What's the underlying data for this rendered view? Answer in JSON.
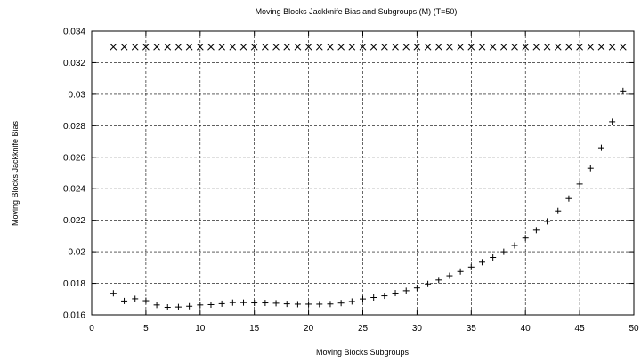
{
  "chart_data": {
    "type": "scatter",
    "title": "Moving Blocks Jackknife Bias and Subgroups (M) (T=50)",
    "xlabel": "Moving Blocks Subgroups",
    "ylabel": "Moving Blocks Jackknife Bias",
    "xlim": [
      0,
      50
    ],
    "ylim": [
      0.016,
      0.034
    ],
    "xticks": [
      "0",
      "5",
      "10",
      "15",
      "20",
      "25",
      "30",
      "35",
      "40",
      "45",
      "50"
    ],
    "yticks": [
      "0.016",
      "0.018",
      "0.02",
      "0.022",
      "0.024",
      "0.026",
      "0.028",
      "0.03",
      "0.032",
      "0.034"
    ],
    "grid": true,
    "series": [
      {
        "marker": "plus",
        "x": [
          2,
          3,
          4,
          5,
          6,
          7,
          8,
          9,
          10,
          11,
          12,
          13,
          14,
          15,
          16,
          17,
          18,
          19,
          20,
          21,
          22,
          23,
          24,
          25,
          26,
          27,
          28,
          29,
          30,
          31,
          32,
          33,
          34,
          35,
          36,
          37,
          38,
          39,
          40,
          41,
          42,
          43,
          44,
          45,
          46,
          47,
          48,
          49
        ],
        "y": [
          0.01737,
          0.01688,
          0.01702,
          0.0169,
          0.01663,
          0.01648,
          0.0165,
          0.01655,
          0.01663,
          0.01665,
          0.01671,
          0.01678,
          0.01678,
          0.01676,
          0.01676,
          0.01674,
          0.0167,
          0.01668,
          0.01668,
          0.01668,
          0.01669,
          0.01675,
          0.01685,
          0.01701,
          0.0171,
          0.01721,
          0.01738,
          0.01753,
          0.01771,
          0.01796,
          0.01821,
          0.01848,
          0.01875,
          0.01903,
          0.01934,
          0.01964,
          0.02,
          0.0204,
          0.02087,
          0.02137,
          0.02193,
          0.02259,
          0.02338,
          0.0243,
          0.0253,
          0.0266,
          0.02825,
          0.0302
        ]
      },
      {
        "marker": "cross",
        "x": [
          2,
          3,
          4,
          5,
          6,
          7,
          8,
          9,
          10,
          11,
          12,
          13,
          14,
          15,
          16,
          17,
          18,
          19,
          20,
          21,
          22,
          23,
          24,
          25,
          26,
          27,
          28,
          29,
          30,
          31,
          32,
          33,
          34,
          35,
          36,
          37,
          38,
          39,
          40,
          41,
          42,
          43,
          44,
          45,
          46,
          47,
          48,
          49
        ],
        "y": [
          0.033,
          0.033,
          0.033,
          0.033,
          0.033,
          0.033,
          0.033,
          0.033,
          0.033,
          0.033,
          0.033,
          0.033,
          0.033,
          0.033,
          0.033,
          0.033,
          0.033,
          0.033,
          0.033,
          0.033,
          0.033,
          0.033,
          0.033,
          0.033,
          0.033,
          0.033,
          0.033,
          0.033,
          0.033,
          0.033,
          0.033,
          0.033,
          0.033,
          0.033,
          0.033,
          0.033,
          0.033,
          0.033,
          0.033,
          0.033,
          0.033,
          0.033,
          0.033,
          0.033,
          0.033,
          0.033,
          0.033,
          0.033
        ]
      }
    ]
  }
}
